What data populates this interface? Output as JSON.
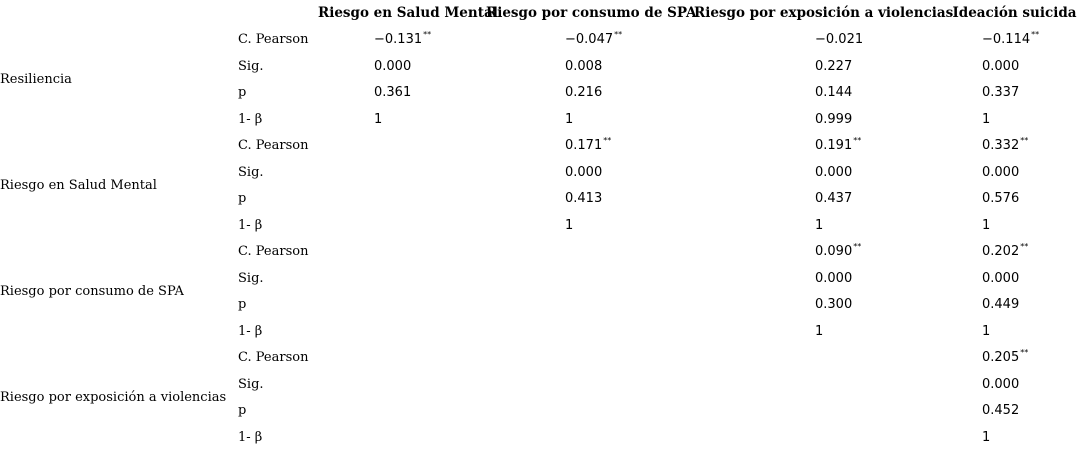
{
  "columns": [
    "Riesgo en Salud Mental",
    "Riesgo por consumo de SPA",
    "Riesgo por exposición a violencias",
    "Ideación suicida"
  ],
  "stat_labels": [
    "C. Pearson",
    "Sig.",
    "p",
    "1- β"
  ],
  "rows": [
    {
      "label": "Resiliencia",
      "values": [
        [
          "−0.131",
          "−0.047",
          "−0.021",
          "−0.114"
        ],
        [
          "0.000",
          "0.008",
          "0.227",
          "0.000"
        ],
        [
          "0.361",
          "0.216",
          "0.144",
          "0.337"
        ],
        [
          "1",
          "1",
          "0.999",
          "1"
        ]
      ],
      "marks": [
        "**",
        "**",
        "",
        "**"
      ]
    },
    {
      "label": "Riesgo en Salud Mental",
      "values": [
        [
          "",
          "0.171",
          "0.191",
          "0.332"
        ],
        [
          "",
          "0.000",
          "0.000",
          "0.000"
        ],
        [
          "",
          "0.413",
          "0.437",
          "0.576"
        ],
        [
          "",
          "1",
          "1",
          "1"
        ]
      ],
      "marks": [
        "",
        "**",
        "**",
        "**"
      ]
    },
    {
      "label": "Riesgo por consumo de SPA",
      "values": [
        [
          "",
          "",
          "0.090",
          "0.202"
        ],
        [
          "",
          "",
          "0.000",
          "0.000"
        ],
        [
          "",
          "",
          "0.300",
          "0.449"
        ],
        [
          "",
          "",
          "1",
          "1"
        ]
      ],
      "marks": [
        "",
        "",
        "**",
        "**"
      ]
    },
    {
      "label": "Riesgo por exposición a violencias",
      "values": [
        [
          "",
          "",
          "",
          "0.205"
        ],
        [
          "",
          "",
          "",
          "0.000"
        ],
        [
          "",
          "",
          "",
          "0.452"
        ],
        [
          "",
          "",
          "",
          "1"
        ]
      ],
      "marks": [
        "",
        "",
        "",
        "**"
      ]
    }
  ]
}
